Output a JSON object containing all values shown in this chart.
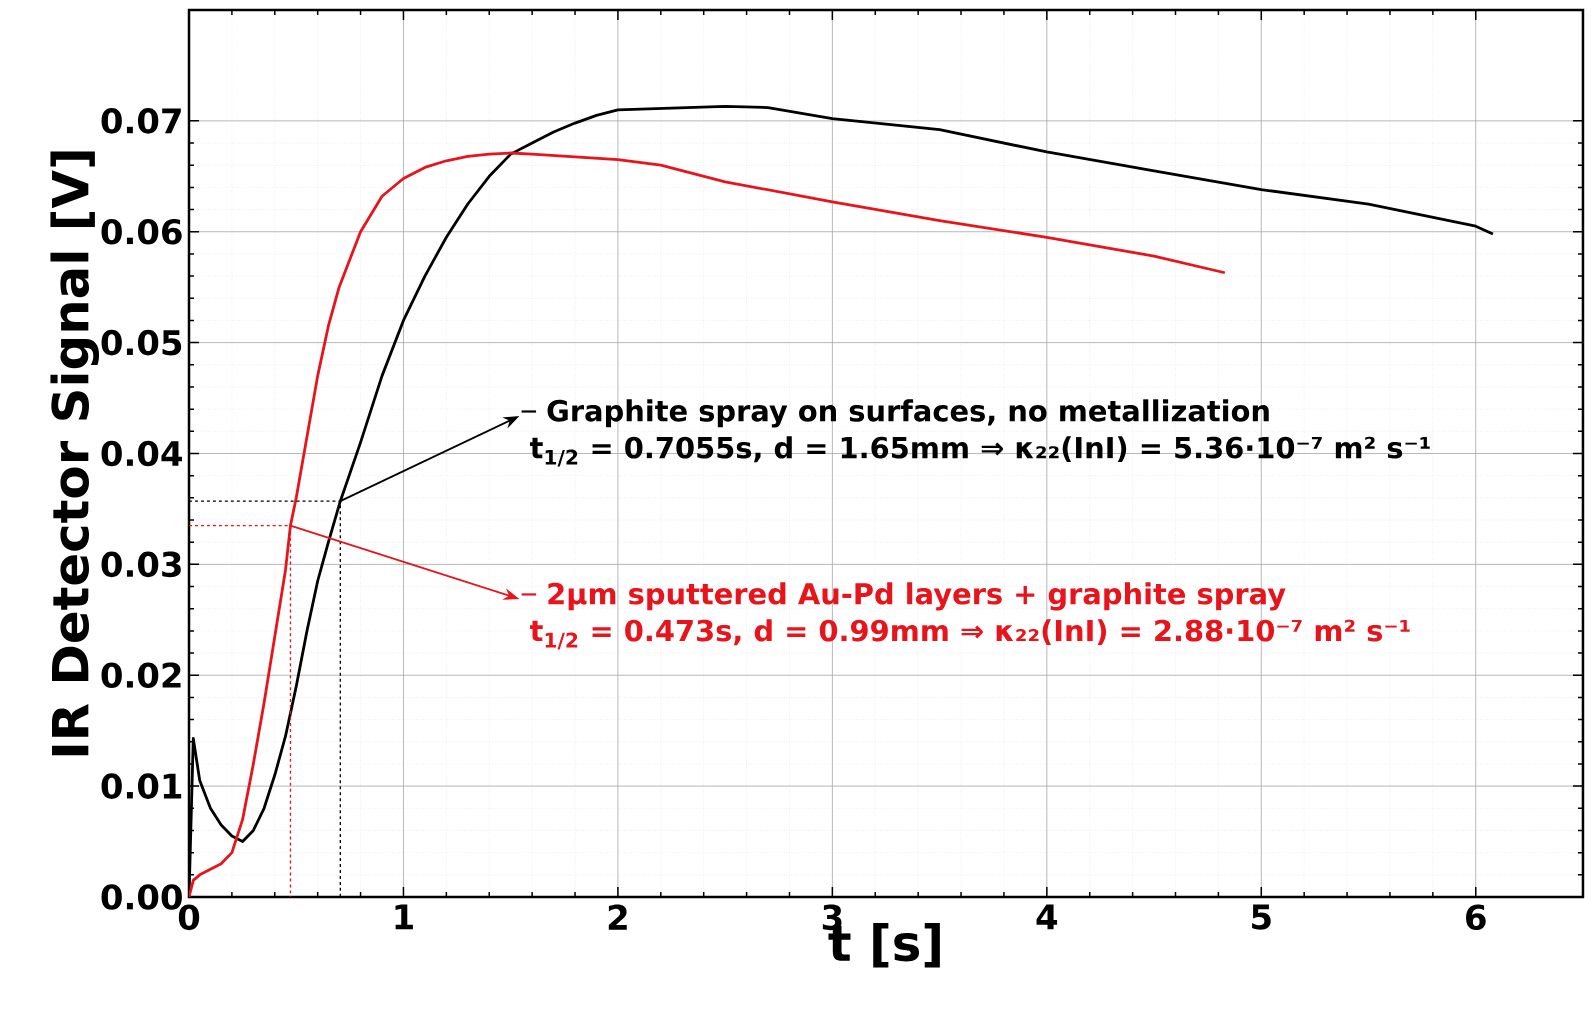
{
  "chart_data": {
    "type": "line",
    "xlabel": "t [s]",
    "ylabel": "IR Detector Signal [V]",
    "xlim": [
      0,
      6.5
    ],
    "ylim": [
      0,
      0.08
    ],
    "xticks": [
      0,
      1,
      2,
      3,
      4,
      5,
      6
    ],
    "yticks": [
      {
        "value": 0,
        "label": "0.00"
      },
      {
        "value": 0.01,
        "label": "0.01"
      },
      {
        "value": 0.02,
        "label": "0.02"
      },
      {
        "value": 0.03,
        "label": "0.03"
      },
      {
        "value": 0.04,
        "label": "0.04"
      },
      {
        "value": 0.05,
        "label": "0.05"
      },
      {
        "value": 0.06,
        "label": "0.06"
      },
      {
        "value": 0.07,
        "label": "0.07"
      }
    ],
    "grid": true,
    "legend": "right",
    "series": [
      {
        "name": "Graphite spray on surfaces, no metallization",
        "color": "#000000",
        "x": [
          0,
          0.02,
          0.05,
          0.1,
          0.15,
          0.2,
          0.25,
          0.3,
          0.35,
          0.4,
          0.45,
          0.5,
          0.55,
          0.6,
          0.65,
          0.7055,
          0.8,
          0.9,
          1.0,
          1.1,
          1.2,
          1.3,
          1.4,
          1.5,
          1.6,
          1.7,
          1.8,
          1.9,
          2.0,
          2.5,
          2.7,
          3.0,
          3.5,
          4.0,
          4.5,
          5.0,
          5.5,
          6.0,
          6.08
        ],
        "values": [
          0,
          0.0143,
          0.0105,
          0.008,
          0.0065,
          0.0055,
          0.005,
          0.006,
          0.008,
          0.011,
          0.0145,
          0.019,
          0.024,
          0.0285,
          0.032,
          0.0357,
          0.041,
          0.047,
          0.052,
          0.056,
          0.0595,
          0.0625,
          0.065,
          0.067,
          0.068,
          0.069,
          0.0698,
          0.0705,
          0.071,
          0.0713,
          0.0712,
          0.0702,
          0.0692,
          0.0672,
          0.0655,
          0.0638,
          0.0625,
          0.0605,
          0.0598
        ]
      },
      {
        "name": "2µm sputtered Au-Pd layers + graphite spray",
        "color": "#e8141c",
        "x": [
          0,
          0.02,
          0.05,
          0.1,
          0.15,
          0.2,
          0.25,
          0.3,
          0.35,
          0.4,
          0.45,
          0.473,
          0.5,
          0.55,
          0.6,
          0.65,
          0.7,
          0.8,
          0.9,
          1.0,
          1.1,
          1.2,
          1.3,
          1.4,
          1.5,
          1.6,
          2.0,
          2.2,
          2.5,
          3.0,
          3.5,
          4.0,
          4.5,
          4.83
        ],
        "values": [
          0,
          0.0015,
          0.002,
          0.0025,
          0.003,
          0.004,
          0.007,
          0.012,
          0.0175,
          0.0235,
          0.0295,
          0.0335,
          0.036,
          0.0415,
          0.047,
          0.0515,
          0.055,
          0.06,
          0.0632,
          0.0648,
          0.0658,
          0.0664,
          0.0668,
          0.067,
          0.0671,
          0.067,
          0.0665,
          0.066,
          0.0645,
          0.0627,
          0.061,
          0.0595,
          0.0578,
          0.0563
        ]
      },
      {
        "color": "#000000",
        "line_style": "dashed",
        "x": [
          0,
          0.7055,
          0.7055
        ],
        "values": [
          0.0357,
          0.0357,
          0
        ]
      },
      {
        "color": "#e8141c",
        "line_style": "dashed",
        "x": [
          0,
          0.473,
          0.473
        ],
        "values": [
          0.0335,
          0.0335,
          0
        ]
      }
    ],
    "annotations": [
      {
        "text": "t$_{1/2}$ = 0.7055s, d = 1.65mm ⇒ κ₂₂(InI) = 5.36·10⁻⁷ m² s⁻¹",
        "x": 0.7055,
        "y": 0.0357
      },
      {
        "text": "t$_{1/2}$ = 0.473s, d = 0.99mm ⇒ κ₂₂(InI) = 2.88·10⁻⁷ m² s⁻¹",
        "x": 0.473,
        "y": 0.0335
      }
    ]
  }
}
